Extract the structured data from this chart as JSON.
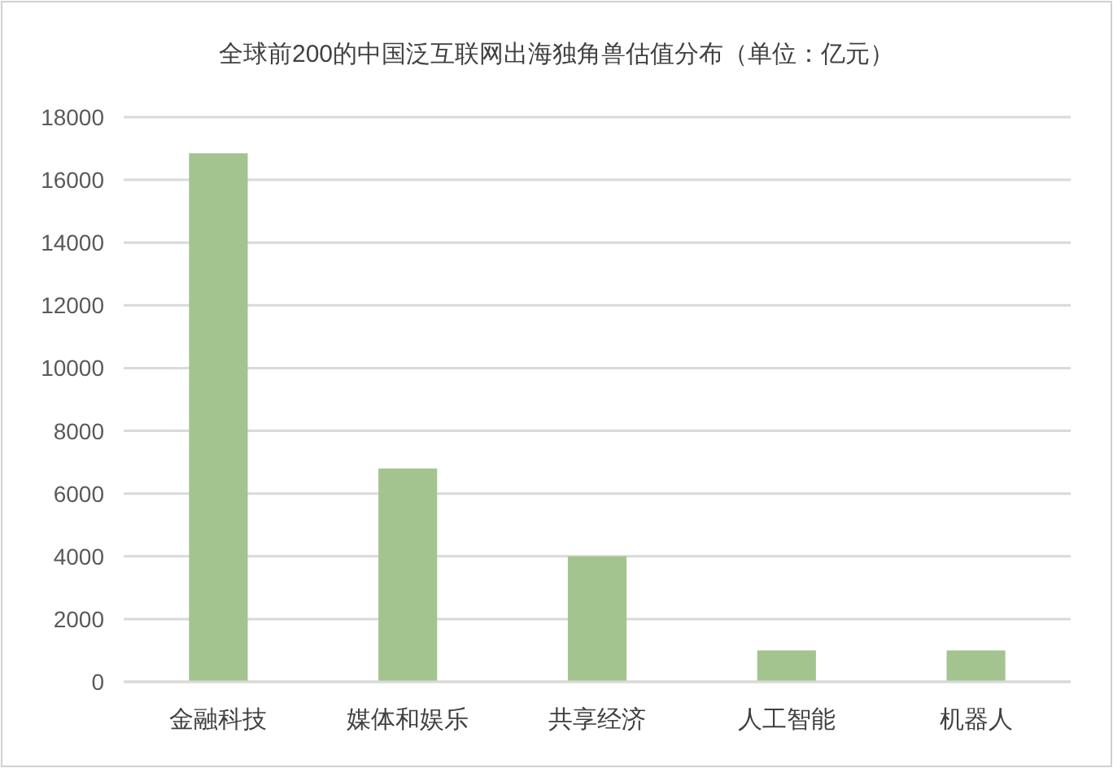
{
  "chart_data": {
    "type": "bar",
    "title": "全球前200的中国泛互联网出海独角兽估值分布（单位：亿元）",
    "categories": [
      "金融科技",
      "媒体和娱乐",
      "共享经济",
      "人工智能",
      "机器人"
    ],
    "values": [
      16850,
      6800,
      4000,
      1000,
      1000
    ],
    "color": "#a3c48f",
    "ylim": [
      0,
      18000
    ],
    "yticks": [
      0,
      2000,
      4000,
      6000,
      8000,
      10000,
      12000,
      14000,
      16000,
      18000
    ],
    "grid": "y"
  }
}
